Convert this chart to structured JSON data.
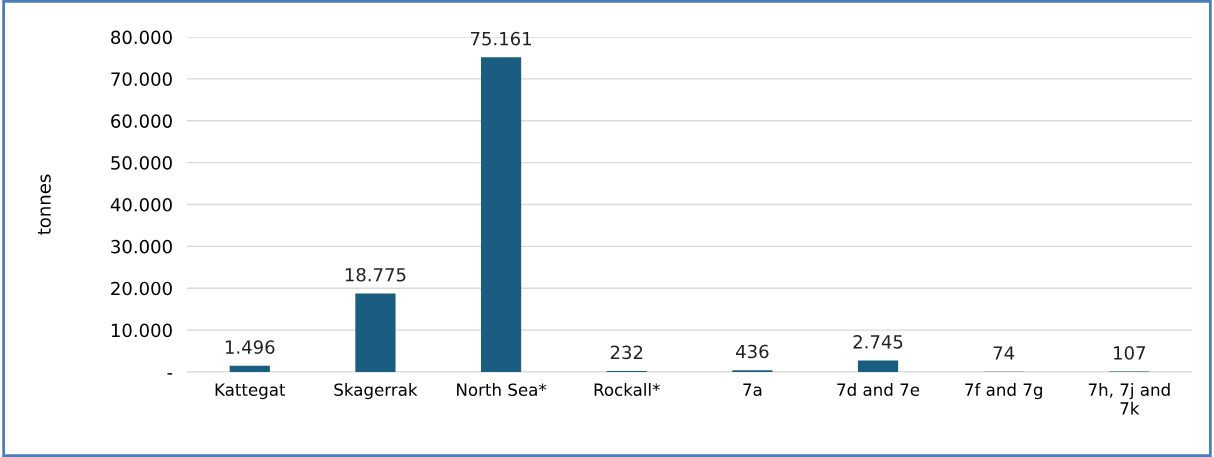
{
  "chart_data": {
    "type": "bar",
    "ylabel": "tonnes",
    "categories": [
      "Kattegat",
      "Skagerrak",
      "North Sea*",
      "Rockall*",
      "7a",
      "7d and 7e",
      "7f and 7g",
      "7h, 7j and\n7k"
    ],
    "values": [
      1496,
      18775,
      75161,
      232,
      436,
      2745,
      74,
      107
    ],
    "value_labels": [
      "1.496",
      "18.775",
      "75.161",
      "232",
      "436",
      "2.745",
      "74",
      "107"
    ],
    "color": "#195e80",
    "ylim": [
      0,
      80000
    ],
    "yticks": [
      {
        "value": 0,
        "label": "-"
      },
      {
        "value": 10000,
        "label": "10.000"
      },
      {
        "value": 20000,
        "label": "20.000"
      },
      {
        "value": 30000,
        "label": "30.000"
      },
      {
        "value": 40000,
        "label": "40.000"
      },
      {
        "value": 50000,
        "label": "50.000"
      },
      {
        "value": 60000,
        "label": "60.000"
      },
      {
        "value": 70000,
        "label": "70.000"
      },
      {
        "value": 80000,
        "label": "80.000"
      }
    ],
    "grid": "y"
  }
}
